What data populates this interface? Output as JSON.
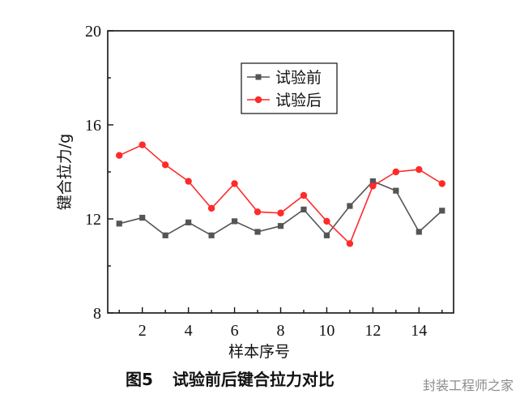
{
  "chart_data": {
    "type": "line",
    "x": [
      1,
      2,
      3,
      4,
      5,
      6,
      7,
      8,
      9,
      10,
      11,
      12,
      13,
      14,
      15
    ],
    "xlabel": "样本序号",
    "ylabel": "键合拉力/g",
    "xlim": [
      0.5,
      15.5
    ],
    "ylim": [
      8,
      20
    ],
    "xticks": [
      2,
      4,
      6,
      8,
      10,
      12,
      14
    ],
    "yticks": [
      8,
      12,
      16,
      20
    ],
    "legend_position": "top-center",
    "series": [
      {
        "name": "试验前",
        "color": "#555555",
        "marker": "square",
        "values": [
          11.8,
          12.05,
          11.3,
          11.85,
          11.3,
          11.9,
          11.45,
          11.7,
          12.4,
          11.3,
          12.55,
          13.6,
          13.2,
          11.45,
          12.35
        ]
      },
      {
        "name": "试验后",
        "color": "#ff2a2a",
        "marker": "circle",
        "values": [
          14.7,
          15.15,
          14.3,
          13.6,
          12.45,
          13.5,
          12.3,
          12.25,
          13.0,
          11.9,
          10.95,
          13.4,
          14.0,
          14.1,
          13.5
        ]
      }
    ]
  },
  "caption": {
    "figure_number": "图5",
    "title": "试验前后键合拉力对比"
  },
  "watermark": "封装工程师之家"
}
